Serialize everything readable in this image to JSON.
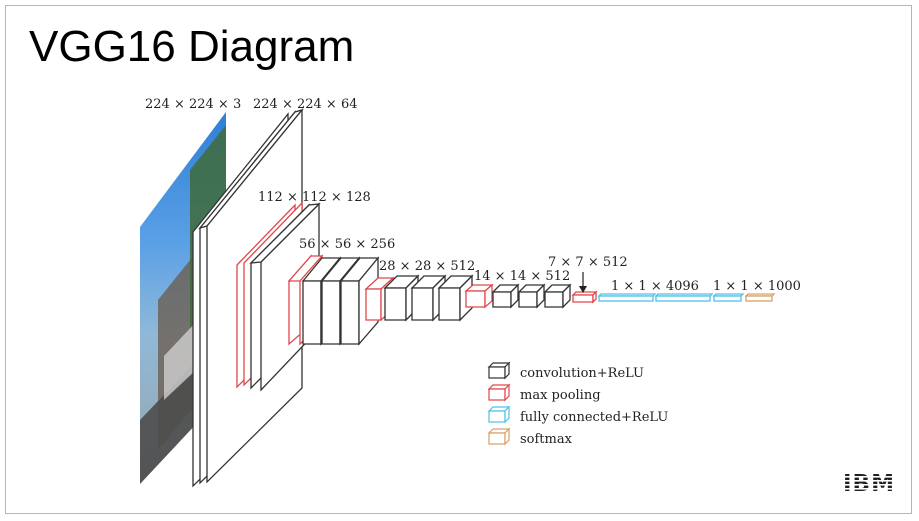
{
  "slide": {
    "title": "VGG16 Diagram"
  },
  "diagram": {
    "layer_labels": [
      "224 × 224 × 3",
      "224 × 224 × 64",
      "112 × 112 × 128",
      "56 × 56 × 256",
      "28 × 28 × 512",
      "14 × 14 × 512",
      "7 × 7 × 512",
      "1 × 1 × 4096",
      "1 × 1 × 1000"
    ],
    "legend": [
      {
        "label": "convolution+ReLU",
        "color": "#333333",
        "icon": "conv-cube-icon"
      },
      {
        "label": "max pooling",
        "color": "#e0474c",
        "icon": "pool-cube-icon"
      },
      {
        "label": "fully connected+ReLU",
        "color": "#4fc1e9",
        "icon": "fc-cube-icon"
      },
      {
        "label": "softmax",
        "color": "#d9a066",
        "icon": "softmax-cube-icon"
      }
    ],
    "colors": {
      "conv": "#333333",
      "pool": "#e0474c",
      "fc": "#4fc1e9",
      "softmax": "#d9a066"
    }
  },
  "logo": {
    "text": "IBM"
  }
}
